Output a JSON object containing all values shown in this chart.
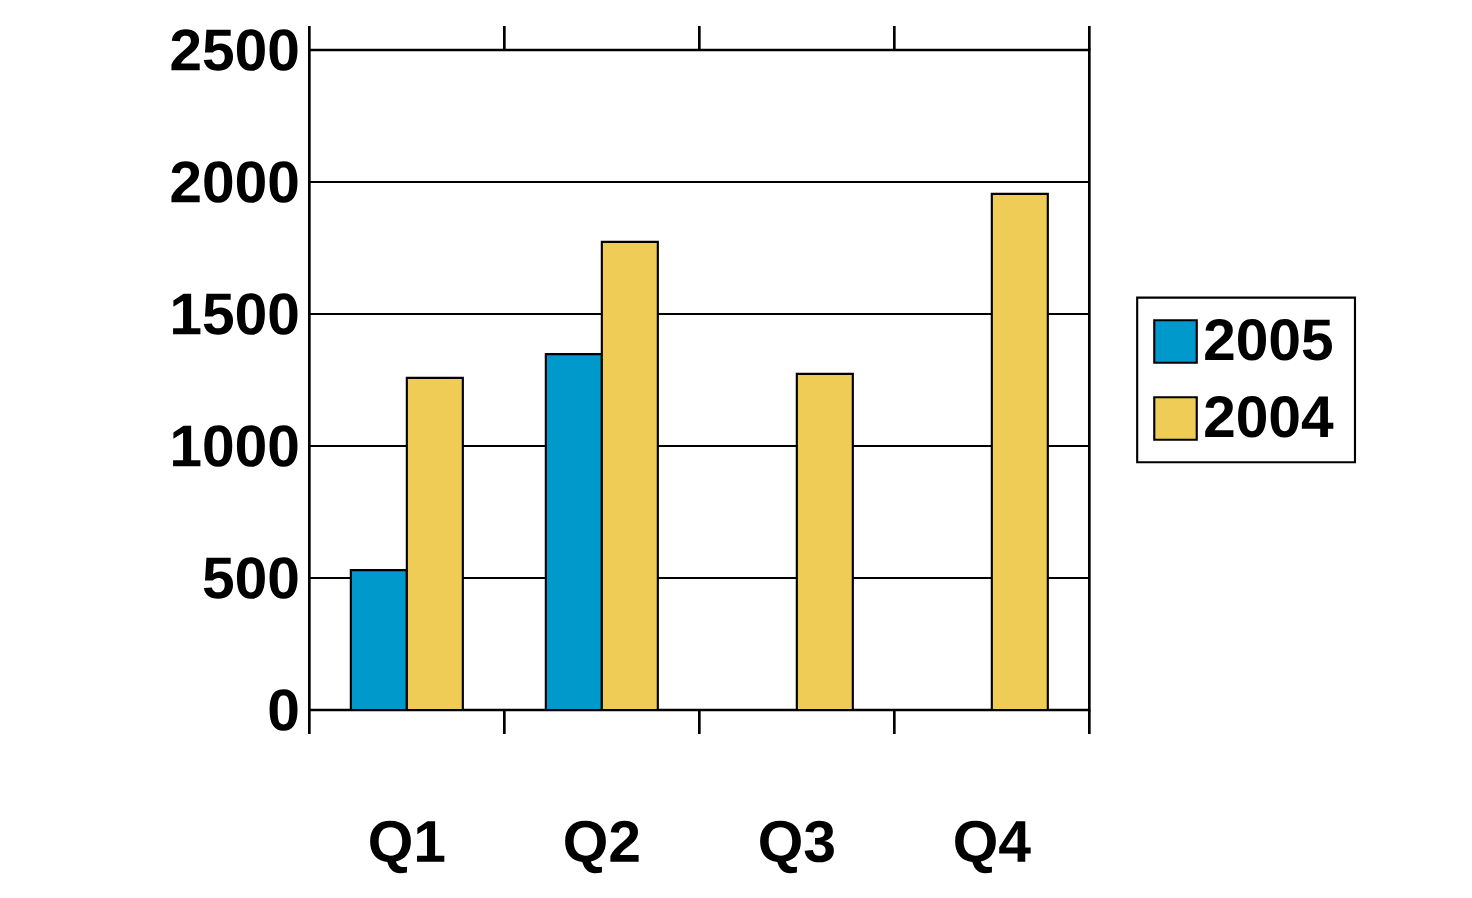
{
  "chart_data": {
    "type": "bar",
    "categories": [
      "Q1",
      "Q2",
      "Q3",
      "Q4"
    ],
    "series": [
      {
        "name": "2005",
        "color": "#0099cc",
        "values": [
          530,
          1348,
          null,
          null
        ]
      },
      {
        "name": "2004",
        "color": "#eecc55",
        "values": [
          1258,
          1773,
          1273,
          1955
        ]
      }
    ],
    "ylim": [
      0,
      2500
    ],
    "yticks": [
      0,
      500,
      1000,
      1500,
      2000,
      2500
    ],
    "grid": "y",
    "legend": "right"
  }
}
